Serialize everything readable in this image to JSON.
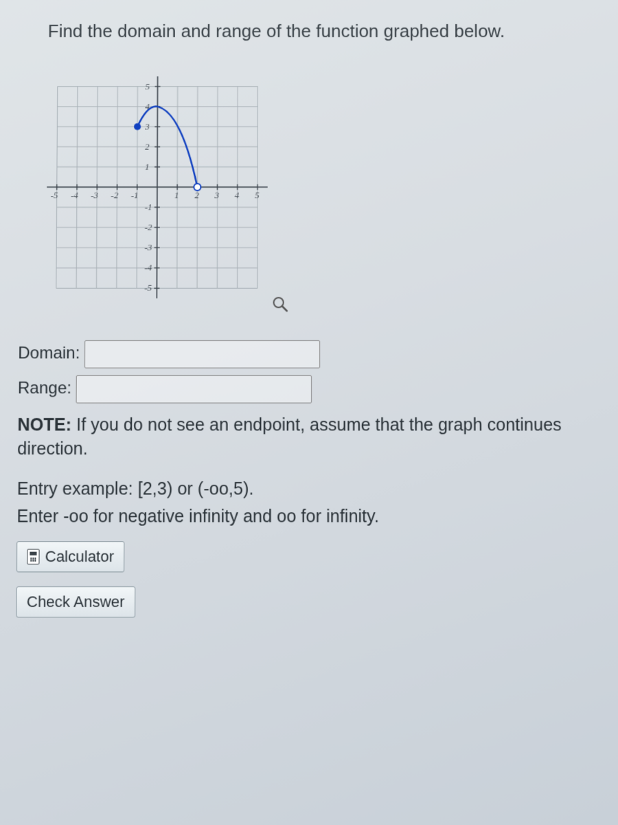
{
  "question": "Find the domain and range of the function graphed below.",
  "chart": {
    "type": "line",
    "xlim": [
      -5.5,
      5.5
    ],
    "ylim": [
      -5.5,
      5.5
    ],
    "xticks": [
      -5,
      -4,
      -3,
      -2,
      -1,
      1,
      2,
      3,
      4,
      5
    ],
    "yticks": [
      -5,
      -4,
      -3,
      -2,
      -1,
      1,
      2,
      3,
      4,
      5
    ],
    "grid_color": "#a8b0b6",
    "axis_color": "#404850",
    "background_color": "transparent",
    "tick_fontsize": 13,
    "curve": {
      "color": "#1040c0",
      "width": 2.5,
      "points": [
        {
          "x": -1,
          "y": 3
        },
        {
          "x": -0.5,
          "y": 3.8
        },
        {
          "x": 0,
          "y": 4
        },
        {
          "x": 0.5,
          "y": 3.7
        },
        {
          "x": 1,
          "y": 2.8
        },
        {
          "x": 1.5,
          "y": 1.5
        },
        {
          "x": 2,
          "y": 0
        }
      ],
      "start_point": {
        "x": -1,
        "y": 3,
        "type": "closed",
        "fill": "#1040c0",
        "radius": 5
      },
      "end_point": {
        "x": 2,
        "y": 0,
        "type": "open",
        "fill": "#ffffff",
        "stroke": "#1040c0",
        "radius": 5
      }
    }
  },
  "inputs": {
    "domain_label": "Domain:",
    "domain_value": "",
    "range_label": "Range:",
    "range_value": ""
  },
  "note_bold": "NOTE:",
  "note_text": " If you do not see an endpoint, assume that the graph continues direction.",
  "note_line2_prefix": "direction.",
  "hint_line1": "Entry example: [2,3) or (-oo,5).",
  "hint_line2": "Enter -oo for negative infinity and oo for infinity.",
  "buttons": {
    "calculator": "Calculator",
    "check": "Check Answer"
  },
  "icons": {
    "magnifier": "magnifier-icon",
    "calculator": "calculator-icon"
  }
}
